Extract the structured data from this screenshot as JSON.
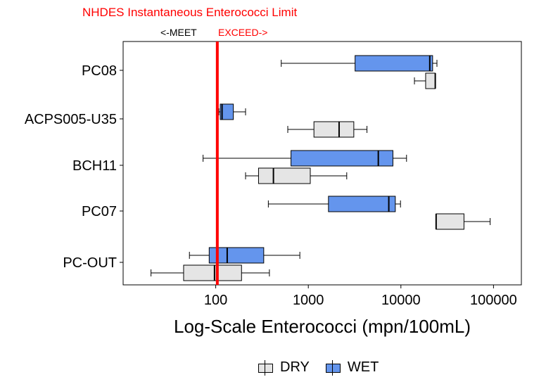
{
  "chart_data": {
    "type": "boxplot",
    "orientation": "horizontal",
    "x_scale": "log10",
    "xlim": [
      10,
      200000
    ],
    "x_ticks": [
      100,
      1000,
      10000,
      100000
    ],
    "x_tick_labels": [
      "100",
      "1000",
      "10000",
      "100000"
    ],
    "xlabel": "Log-Scale Enterococci (mpn/100mL)",
    "ylabel": "",
    "categories": [
      "PC08",
      "ACPS005-U35",
      "BCH11",
      "PC07",
      "PC-OUT"
    ],
    "reference_line": {
      "value": 104,
      "label": "NHDES Instantaneous Enterococci Limit",
      "left_label": "<-MEET",
      "right_label": "EXCEED->",
      "color": "#ff0000"
    },
    "series": [
      {
        "name": "DRY",
        "color": "#e5e5e5",
        "boxes": [
          {
            "category": "PC08",
            "min": 14000,
            "q1": 18500,
            "median": 23500,
            "q3": 23500,
            "max": 23500
          },
          {
            "category": "ACPS005-U35",
            "min": 600,
            "q1": 1150,
            "median": 2150,
            "q3": 3100,
            "max": 4300
          },
          {
            "category": "BCH11",
            "min": 210,
            "q1": 290,
            "median": 420,
            "q3": 1050,
            "max": 2600
          },
          {
            "category": "PC07",
            "min": 24000,
            "q1": 24000,
            "median": 24000,
            "q3": 48000,
            "max": 92000
          },
          {
            "category": "PC-OUT",
            "min": 20,
            "q1": 45,
            "median": 97,
            "q3": 190,
            "max": 380
          }
        ]
      },
      {
        "name": "WET",
        "color": "#6495ed",
        "boxes": [
          {
            "category": "PC08",
            "min": 510,
            "q1": 3200,
            "median": 20500,
            "q3": 22000,
            "max": 24500
          },
          {
            "category": "ACPS005-U35",
            "min": 108,
            "q1": 112,
            "median": 117,
            "q3": 155,
            "max": 210
          },
          {
            "category": "BCH11",
            "min": 73,
            "q1": 650,
            "median": 5700,
            "q3": 8200,
            "max": 11500
          },
          {
            "category": "PC07",
            "min": 370,
            "q1": 1650,
            "median": 7400,
            "q3": 8700,
            "max": 9900
          },
          {
            "category": "PC-OUT",
            "min": 52,
            "q1": 85,
            "median": 133,
            "q3": 330,
            "max": 810
          }
        ]
      }
    ],
    "legend": {
      "position": "bottom",
      "items": [
        "DRY",
        "WET"
      ]
    }
  }
}
